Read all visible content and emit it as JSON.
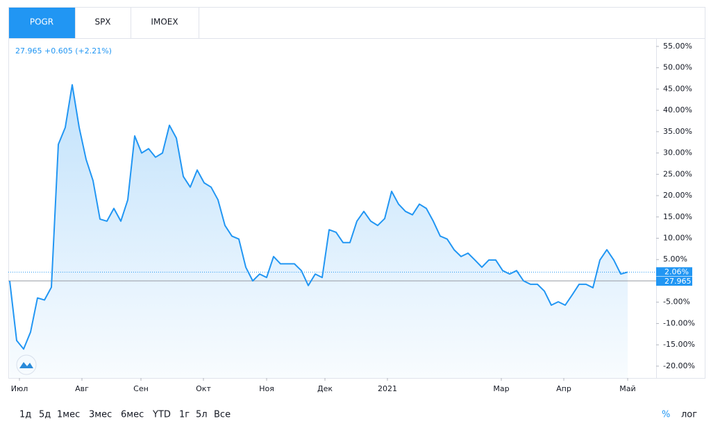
{
  "tabs": [
    "POGR",
    "SPX",
    "IMOEX"
  ],
  "active_tab": 0,
  "quote": "27.965 +0.605 (+2.21%)",
  "range_buttons": [
    "1д",
    "5д",
    "1мес",
    "3мес",
    "6мес",
    "YTD",
    "1г",
    "5л",
    "Все"
  ],
  "scale_buttons": [
    "%",
    "лог"
  ],
  "chart_data": {
    "type": "area",
    "color": "#2196f3",
    "values": [
      0,
      -14,
      -16,
      -12,
      -4,
      -4.5,
      -1.5,
      32,
      36,
      46,
      36,
      28.5,
      23.5,
      14.5,
      14,
      17,
      14,
      19,
      34,
      30,
      31,
      29,
      30,
      36.5,
      33.5,
      24.5,
      22,
      26,
      23,
      22,
      19,
      13,
      10.5,
      9.8,
      3.2,
      0,
      1.6,
      0.8,
      5.7,
      4,
      4,
      4,
      2.4,
      -1.1,
      1.6,
      0.8,
      12,
      11.4,
      9,
      9,
      14,
      16.3,
      14,
      13,
      14.6,
      21,
      18,
      16.3,
      15.5,
      18,
      17,
      14,
      10.5,
      9.8,
      7.3,
      5.7,
      6.5,
      4.9,
      3.2,
      4.9,
      4.9,
      2.4,
      1.6,
      2.4,
      0,
      -0.8,
      -0.8,
      -2.4,
      -5.7,
      -4.9,
      -5.7,
      -3.3,
      -0.8,
      -0.8,
      -1.6,
      4.9,
      7.3,
      4.9,
      1.6,
      2.06
    ],
    "value_labels": [
      null,
      null,
      null,
      null,
      null,
      null,
      null,
      null,
      null,
      null,
      null,
      null,
      null,
      null,
      null,
      null,
      null,
      null,
      null,
      null,
      null,
      null,
      null,
      null,
      null,
      null,
      null,
      null,
      null,
      null,
      null,
      null,
      null,
      null,
      null,
      null,
      null,
      null,
      null,
      null,
      null,
      null,
      null,
      null,
      null,
      null,
      null,
      null,
      null,
      null,
      null,
      null,
      null,
      null,
      null,
      null,
      null,
      null,
      null,
      null,
      null,
      null,
      null,
      null,
      null,
      null,
      null,
      null,
      null,
      null,
      null,
      null,
      null,
      null,
      null,
      null,
      null,
      null,
      null,
      null,
      null,
      null,
      null,
      null,
      null,
      null,
      null,
      null,
      null,
      "2.06%"
    ],
    "baseline": {
      "value": 0,
      "label": "27.965"
    },
    "xlim": [
      -0.2,
      93.1
    ],
    "xticks": [
      {
        "value": 1.4,
        "label": "Июл"
      },
      {
        "value": 10.4,
        "label": "Авг"
      },
      {
        "value": 18.9,
        "label": "Сен"
      },
      {
        "value": 27.9,
        "label": "Окт"
      },
      {
        "value": 37,
        "label": "Ноя"
      },
      {
        "value": 45.4,
        "label": "Дек"
      },
      {
        "value": 54.4,
        "label": "2021"
      },
      {
        "value": 70.8,
        "label": "Мар"
      },
      {
        "value": 79.8,
        "label": "Апр"
      },
      {
        "value": 89,
        "label": "Май"
      }
    ],
    "ylim": [
      -22.78,
      56.94
    ],
    "yticks": [
      {
        "value": 55,
        "label": "55.00%"
      },
      {
        "value": 50,
        "label": "50.00%"
      },
      {
        "value": 45,
        "label": "45.00%"
      },
      {
        "value": 40,
        "label": "40.00%"
      },
      {
        "value": 35,
        "label": "35.00%"
      },
      {
        "value": 30,
        "label": "30.00%"
      },
      {
        "value": 25,
        "label": "25.00%"
      },
      {
        "value": 20,
        "label": "20.00%"
      },
      {
        "value": 15,
        "label": "15.00%"
      },
      {
        "value": 10,
        "label": "10.00%"
      },
      {
        "value": 5,
        "label": "5.00%"
      },
      {
        "value": -5,
        "label": "-5.00%"
      },
      {
        "value": -10,
        "label": "-10.00%"
      },
      {
        "value": -15,
        "label": "-15.00%"
      },
      {
        "value": -20,
        "label": "-20.00%"
      }
    ]
  }
}
